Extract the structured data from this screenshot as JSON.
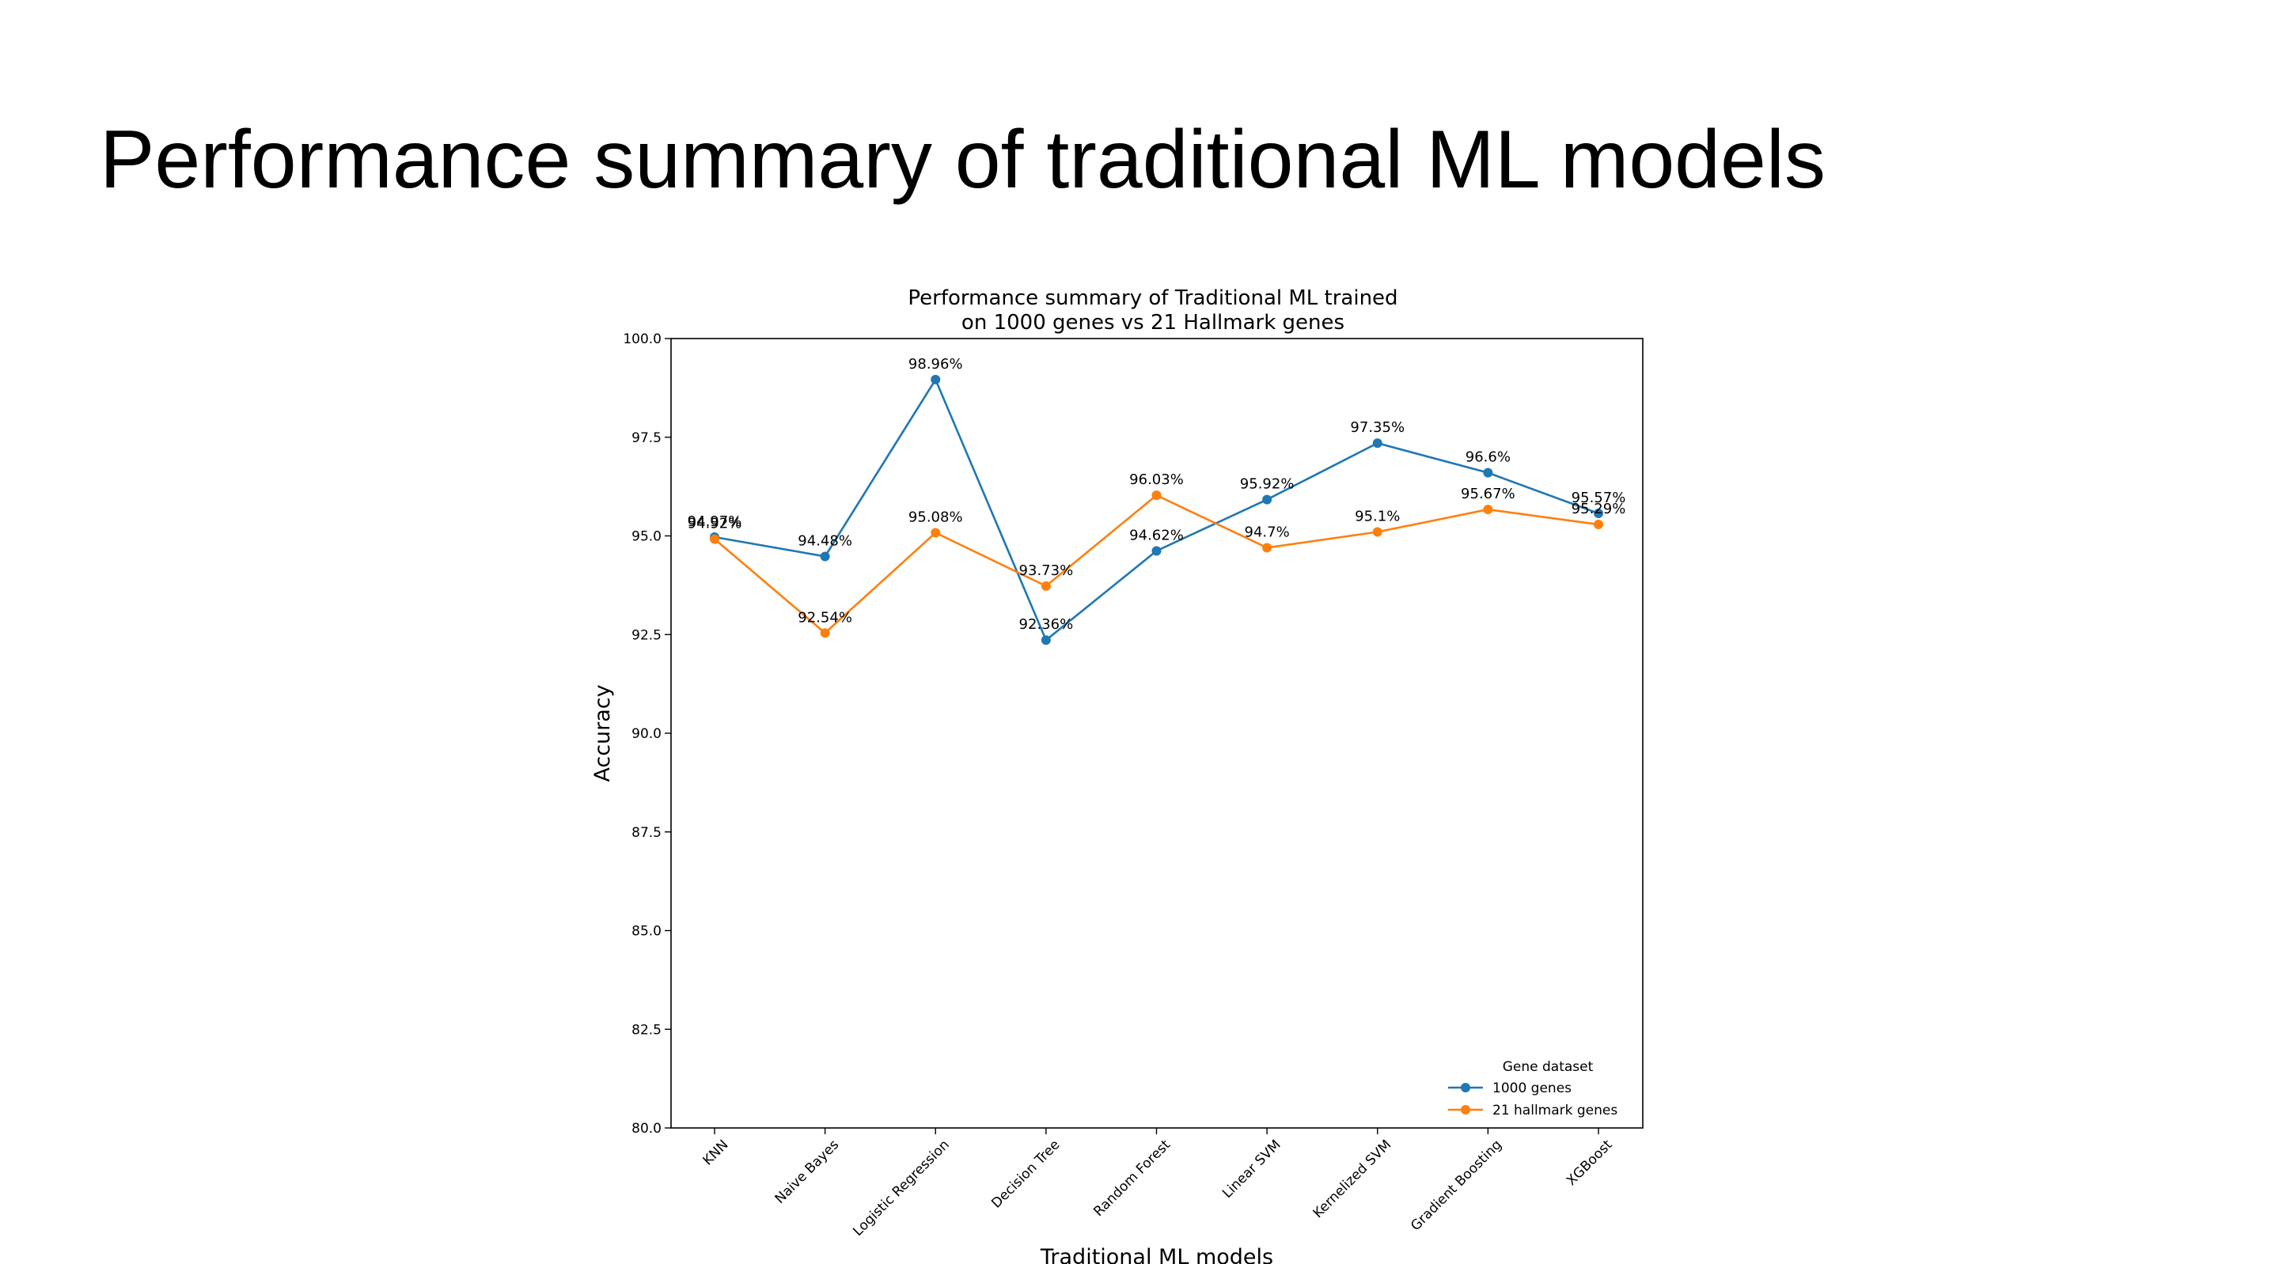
{
  "slide": {
    "title": "Performance summary of traditional ML models"
  },
  "chart_data": {
    "type": "line",
    "title_lines": [
      "Performance summary of Traditional ML trained",
      "on 1000 genes vs 21 Hallmark genes"
    ],
    "xlabel": "Traditional ML models",
    "ylabel": "Accuracy",
    "ylim": [
      80.0,
      100.0
    ],
    "yticks": [
      "80.0",
      "82.5",
      "85.0",
      "87.5",
      "90.0",
      "92.5",
      "95.0",
      "97.5",
      "100.0"
    ],
    "categories": [
      "KNN",
      "Naive Bayes",
      "Logistic Regression",
      "Decision Tree",
      "Random Forest",
      "Linear SVM",
      "Kernelized SVM",
      "Gradient Boosting",
      "XGBoost"
    ],
    "series": [
      {
        "name": "1000 genes",
        "color": "#1f77b4",
        "values": [
          94.97,
          94.48,
          98.96,
          92.36,
          94.62,
          95.92,
          97.35,
          96.6,
          95.57
        ],
        "labels": [
          "94.97%",
          "94.48%",
          "98.96%",
          "92.36%",
          "94.62%",
          "95.92%",
          "97.35%",
          "96.6%",
          "95.57%"
        ]
      },
      {
        "name": "21 hallmark genes",
        "color": "#ff7f0e",
        "values": [
          94.92,
          92.54,
          95.08,
          93.73,
          96.03,
          94.7,
          95.1,
          95.67,
          95.29
        ],
        "labels": [
          "94.92%",
          "92.54%",
          "95.08%",
          "93.73%",
          "96.03%",
          "94.7%",
          "95.1%",
          "95.67%",
          "95.29%"
        ]
      }
    ],
    "legend": {
      "title": "Gene dataset",
      "placement": "lower-right"
    },
    "grid": false
  }
}
